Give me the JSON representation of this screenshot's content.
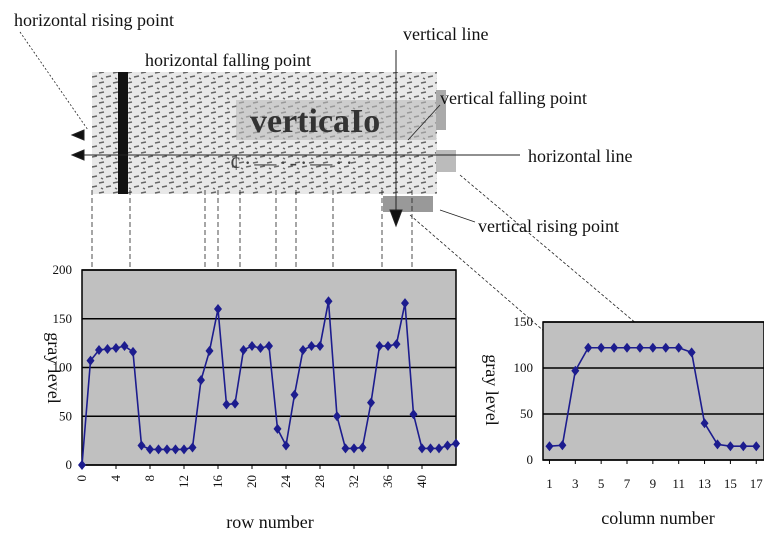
{
  "figure": {
    "labels": [
      "horizontal rising point",
      "horizontal falling point",
      "vertical line",
      "vertical falling point",
      "horizontal line",
      "vertical rising point"
    ]
  },
  "chart_data": [
    {
      "type": "line",
      "xlabel": "row number",
      "ylabel": "gray level",
      "color": "#1c1c8e",
      "grid": true,
      "x": [
        0,
        1,
        2,
        3,
        4,
        5,
        6,
        7,
        8,
        9,
        10,
        11,
        12,
        13,
        14,
        15,
        16,
        17,
        18,
        19,
        20,
        21,
        22,
        23,
        24,
        25,
        26,
        27,
        28,
        29,
        30,
        31,
        32,
        33,
        34,
        35,
        36,
        37,
        38,
        39,
        40,
        41,
        42,
        43,
        44
      ],
      "values": [
        0,
        107,
        118,
        119,
        120,
        122,
        116,
        20,
        16,
        16,
        16,
        16,
        16,
        18,
        87,
        117,
        160,
        62,
        63,
        118,
        122,
        120,
        122,
        37,
        20,
        72,
        118,
        122,
        122,
        168,
        50,
        17,
        17,
        18,
        64,
        122,
        122,
        124,
        166,
        52,
        17,
        17,
        17,
        20,
        22
      ],
      "xlim": [
        0,
        44
      ],
      "xticks": [
        0,
        4,
        8,
        12,
        16,
        20,
        24,
        28,
        32,
        36,
        40
      ],
      "ylim": [
        0,
        200
      ],
      "yticks": [
        0,
        50,
        100,
        150,
        200
      ]
    },
    {
      "type": "line",
      "xlabel": "column number",
      "ylabel": "gray level",
      "color": "#1c1c8e",
      "grid": true,
      "x": [
        1,
        2,
        3,
        4,
        5,
        6,
        7,
        8,
        9,
        10,
        11,
        12,
        13,
        14,
        15,
        16,
        17
      ],
      "values": [
        15,
        16,
        97,
        122,
        122,
        122,
        122,
        122,
        122,
        122,
        122,
        117,
        40,
        17,
        15,
        15,
        15
      ],
      "xlim": [
        0.5,
        17.6
      ],
      "xticks": [
        1,
        3,
        5,
        7,
        9,
        11,
        13,
        15,
        17
      ],
      "ylim": [
        0,
        150
      ],
      "yticks": [
        0,
        50,
        100,
        150
      ]
    }
  ]
}
